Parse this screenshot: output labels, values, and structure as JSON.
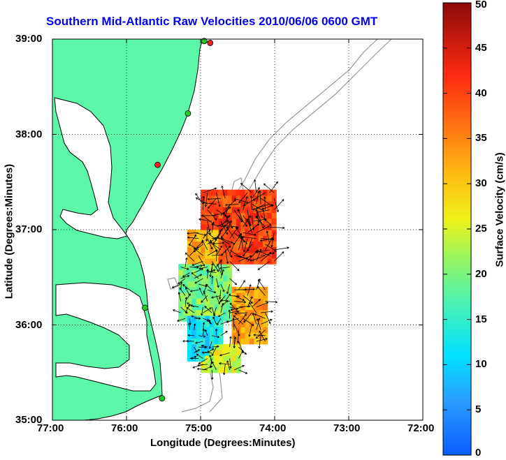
{
  "title": "Southern Mid-Atlantic Raw Velocities 2010/06/06 0600 GMT",
  "xlabel": "Longitude (Degrees:Minutes)",
  "ylabel": "Latitude (Degrees:Minutes)",
  "colorbar": {
    "label": "Surface Velocity (cm/s)",
    "min": 0,
    "max": 50,
    "ticks": [
      "0",
      "5",
      "10",
      "15",
      "20",
      "25",
      "30",
      "35",
      "40",
      "45",
      "50"
    ]
  },
  "x_ticks": [
    "77:00",
    "76:00",
    "75:00",
    "74:00",
    "73:00",
    "72:00"
  ],
  "y_ticks": [
    "39:00",
    "38:00",
    "37:00",
    "36:00",
    "35:00"
  ],
  "extent": {
    "lon_west": -77,
    "lon_east": -72,
    "lat_south": 35,
    "lat_north": 39
  },
  "grid": "dotted",
  "colors": {
    "land": "#5cf7a8",
    "coastline": "#000000",
    "bathymetry": "#999999",
    "title": "#0000ee",
    "station_green": "#22cc22",
    "station_red": "#ee2222"
  },
  "stations": [
    {
      "lon": -74.87,
      "lat": 38.96,
      "status": "red"
    },
    {
      "lon": -74.95,
      "lat": 38.98,
      "status": "green"
    },
    {
      "lon": -75.17,
      "lat": 38.22,
      "status": "green"
    },
    {
      "lon": -75.58,
      "lat": 37.68,
      "status": "red"
    },
    {
      "lon": -75.75,
      "lat": 36.18,
      "status": "green"
    },
    {
      "lon": -75.52,
      "lat": 35.23,
      "status": "green"
    }
  ],
  "chart_data": {
    "type": "vector-field",
    "description_of_quantity": "Surface Velocity (cm/s)",
    "regions": [
      {
        "lon": [
          -75.0,
          -74.0
        ],
        "lat": [
          36.6,
          37.4
        ],
        "speed_cms": 40
      },
      {
        "lon": [
          -75.2,
          -74.8
        ],
        "lat": [
          36.6,
          37.0
        ],
        "speed_cms": 32
      },
      {
        "lon": [
          -75.3,
          -74.6
        ],
        "lat": [
          36.0,
          36.6
        ],
        "speed_cms": 20
      },
      {
        "lon": [
          -74.6,
          -74.1
        ],
        "lat": [
          35.8,
          36.4
        ],
        "speed_cms": 33
      },
      {
        "lon": [
          -75.2,
          -74.7
        ],
        "lat": [
          35.6,
          36.1
        ],
        "speed_cms": 12
      },
      {
        "lon": [
          -75.0,
          -74.5
        ],
        "lat": [
          35.5,
          35.8
        ],
        "speed_cms": 25
      }
    ]
  }
}
